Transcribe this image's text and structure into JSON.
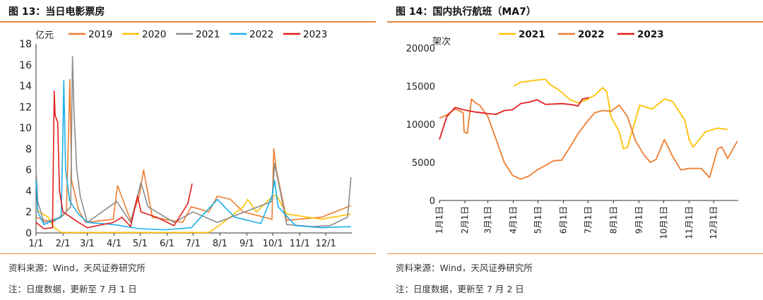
{
  "left": {
    "title": "图 13：当日电影票房",
    "source": "资料来源：Wind，天风证券研究所",
    "note": "注：日度数据，更新至 7 月 1 日",
    "chart_data": {
      "type": "line",
      "ylabel": "亿元",
      "ylim": [
        0,
        18
      ],
      "yticks": [
        "0",
        "2",
        "4",
        "6",
        "8",
        "10",
        "12",
        "14",
        "16",
        "18"
      ],
      "xticks": [
        "1/1",
        "2/1",
        "3/1",
        "4/1",
        "5/1",
        "6/1",
        "7/1",
        "8/1",
        "9/1",
        "10/1",
        "11/1",
        "12/1"
      ],
      "legend": "top",
      "series": [
        {
          "name": "2019",
          "color": "#ed7d31",
          "values": [
            [
              1,
              1.5
            ],
            [
              20,
              1.0
            ],
            [
              36,
              2.0
            ],
            [
              38,
              8.0
            ],
            [
              40,
              14.6
            ],
            [
              42,
              5.0
            ],
            [
              50,
              2.2
            ],
            [
              58,
              1.0
            ],
            [
              90,
              1.3
            ],
            [
              95,
              4.5
            ],
            [
              110,
              1.2
            ],
            [
              120,
              3.5
            ],
            [
              125,
              6.0
            ],
            [
              135,
              1.5
            ],
            [
              170,
              1.0
            ],
            [
              180,
              2.5
            ],
            [
              200,
              2.0
            ],
            [
              210,
              3.5
            ],
            [
              225,
              3.2
            ],
            [
              240,
              2.0
            ],
            [
              273,
              1.3
            ],
            [
              275,
              8.0
            ],
            [
              278,
              6.0
            ],
            [
              290,
              1.2
            ],
            [
              330,
              1.5
            ],
            [
              364,
              2.6
            ]
          ]
        },
        {
          "name": "2020",
          "color": "#ffc000",
          "values": [
            [
              1,
              2.2
            ],
            [
              15,
              1.5
            ],
            [
              22,
              0.5
            ],
            [
              30,
              0.05
            ],
            [
              200,
              0.05
            ],
            [
              205,
              0.3
            ],
            [
              220,
              1.2
            ],
            [
              240,
              2.5
            ],
            [
              245,
              3.2
            ],
            [
              255,
              2.0
            ],
            [
              274,
              3.5
            ],
            [
              278,
              3.6
            ],
            [
              290,
              1.8
            ],
            [
              330,
              1.3
            ],
            [
              364,
              1.8
            ]
          ]
        },
        {
          "name": "2021",
          "color": "#8c8c8c",
          "values": [
            [
              1,
              6.0
            ],
            [
              3,
              3.0
            ],
            [
              10,
              1.0
            ],
            [
              30,
              1.5
            ],
            [
              41,
              2.5
            ],
            [
              43,
              16.8
            ],
            [
              45,
              11.0
            ],
            [
              48,
              6.0
            ],
            [
              52,
              3.5
            ],
            [
              60,
              1.0
            ],
            [
              94,
              3.0
            ],
            [
              110,
              1.0
            ],
            [
              122,
              4.8
            ],
            [
              130,
              2.5
            ],
            [
              160,
              1.0
            ],
            [
              182,
              2.0
            ],
            [
              210,
              1.0
            ],
            [
              273,
              3.0
            ],
            [
              276,
              6.6
            ],
            [
              280,
              5.0
            ],
            [
              290,
              0.8
            ],
            [
              320,
              0.6
            ],
            [
              340,
              0.7
            ],
            [
              360,
              1.5
            ],
            [
              364,
              5.3
            ]
          ]
        },
        {
          "name": "2022",
          "color": "#1cb0e8",
          "values": [
            [
              1,
              5.0
            ],
            [
              3,
              2.0
            ],
            [
              10,
              0.8
            ],
            [
              30,
              1.5
            ],
            [
              32,
              9.5
            ],
            [
              33,
              14.5
            ],
            [
              35,
              6.0
            ],
            [
              40,
              3.0
            ],
            [
              50,
              1.8
            ],
            [
              60,
              1.0
            ],
            [
              90,
              0.8
            ],
            [
              120,
              0.4
            ],
            [
              150,
              0.3
            ],
            [
              180,
              0.5
            ],
            [
              210,
              3.2
            ],
            [
              230,
              1.5
            ],
            [
              260,
              0.9
            ],
            [
              273,
              3.5
            ],
            [
              276,
              5.0
            ],
            [
              280,
              2.5
            ],
            [
              300,
              0.7
            ],
            [
              330,
              0.5
            ],
            [
              364,
              0.6
            ]
          ]
        },
        {
          "name": "2023",
          "color": "#e31e1e",
          "values": [
            [
              1,
              1.0
            ],
            [
              10,
              0.4
            ],
            [
              20,
              0.5
            ],
            [
              22,
              13.5
            ],
            [
              23,
              11.2
            ],
            [
              26,
              10.5
            ],
            [
              28,
              4.0
            ],
            [
              32,
              2.0
            ],
            [
              50,
              1.0
            ],
            [
              60,
              0.5
            ],
            [
              90,
              1.0
            ],
            [
              100,
              1.5
            ],
            [
              110,
              0.6
            ],
            [
              118,
              3.5
            ],
            [
              122,
              2.0
            ],
            [
              140,
              1.5
            ],
            [
              160,
              0.7
            ],
            [
              170,
              2.0
            ],
            [
              176,
              2.8
            ],
            [
              181,
              4.7
            ]
          ]
        }
      ]
    }
  },
  "right": {
    "title": "图 14：国内执行航班（MA7）",
    "source": "资料来源：Wind，天风证券研究所",
    "note": "注：日度数据，更新至 7 月 2 日",
    "chart_data": {
      "type": "line",
      "ylabel": "架次",
      "ylim": [
        0,
        20000
      ],
      "yticks": [
        "0",
        "5000",
        "10000",
        "15000",
        "20000"
      ],
      "xticks": [
        "1月1日",
        "2月1日",
        "3月1日",
        "4月1日",
        "5月1日",
        "6月1日",
        "7月1日",
        "8月1日",
        "9月1日",
        "10月1日",
        "11月1日",
        "12月1日"
      ],
      "legend": "top",
      "series": [
        {
          "name": "2021",
          "color": "#ffc000",
          "values": [
            [
              91,
              15000
            ],
            [
              100,
              15500
            ],
            [
              120,
              15800
            ],
            [
              130,
              15900
            ],
            [
              135,
              15300
            ],
            [
              150,
              14200
            ],
            [
              160,
              13200
            ],
            [
              170,
              12800
            ],
            [
              180,
              13200
            ],
            [
              190,
              13800
            ],
            [
              200,
              14800
            ],
            [
              205,
              14200
            ],
            [
              210,
              11000
            ],
            [
              220,
              9000
            ],
            [
              225,
              6800
            ],
            [
              230,
              7000
            ],
            [
              245,
              12500
            ],
            [
              260,
              12000
            ],
            [
              275,
              13300
            ],
            [
              285,
              13000
            ],
            [
              300,
              10500
            ],
            [
              305,
              8000
            ],
            [
              310,
              7000
            ],
            [
              325,
              9000
            ],
            [
              340,
              9500
            ],
            [
              352,
              9300
            ]
          ]
        },
        {
          "name": "2022",
          "color": "#ed7d31",
          "values": [
            [
              1,
              10800
            ],
            [
              10,
              11200
            ],
            [
              20,
              12000
            ],
            [
              30,
              11500
            ],
            [
              31,
              9000
            ],
            [
              35,
              8800
            ],
            [
              40,
              13300
            ],
            [
              45,
              12800
            ],
            [
              50,
              12500
            ],
            [
              60,
              11000
            ],
            [
              70,
              8000
            ],
            [
              80,
              5000
            ],
            [
              90,
              3300
            ],
            [
              100,
              2800
            ],
            [
              110,
              3200
            ],
            [
              120,
              4000
            ],
            [
              130,
              4600
            ],
            [
              140,
              5200
            ],
            [
              150,
              5300
            ],
            [
              160,
              7000
            ],
            [
              170,
              8800
            ],
            [
              180,
              10200
            ],
            [
              190,
              11500
            ],
            [
              200,
              11800
            ],
            [
              210,
              11700
            ],
            [
              220,
              12500
            ],
            [
              230,
              11000
            ],
            [
              240,
              7800
            ],
            [
              250,
              6000
            ],
            [
              258,
              5000
            ],
            [
              265,
              5400
            ],
            [
              275,
              8000
            ],
            [
              285,
              5800
            ],
            [
              295,
              4000
            ],
            [
              305,
              4200
            ],
            [
              320,
              4200
            ],
            [
              330,
              3000
            ],
            [
              340,
              6800
            ],
            [
              345,
              7000
            ],
            [
              352,
              5500
            ],
            [
              364,
              7800
            ]
          ]
        },
        {
          "name": "2023",
          "color": "#e31e1e",
          "values": [
            [
              1,
              8000
            ],
            [
              10,
              11000
            ],
            [
              20,
              12200
            ],
            [
              30,
              11900
            ],
            [
              45,
              11600
            ],
            [
              60,
              11400
            ],
            [
              70,
              11300
            ],
            [
              80,
              11800
            ],
            [
              90,
              11900
            ],
            [
              100,
              12700
            ],
            [
              110,
              12900
            ],
            [
              120,
              13200
            ],
            [
              130,
              12600
            ],
            [
              150,
              12700
            ],
            [
              160,
              12600
            ],
            [
              170,
              12400
            ],
            [
              175,
              13300
            ],
            [
              183,
              13500
            ]
          ]
        }
      ]
    }
  }
}
